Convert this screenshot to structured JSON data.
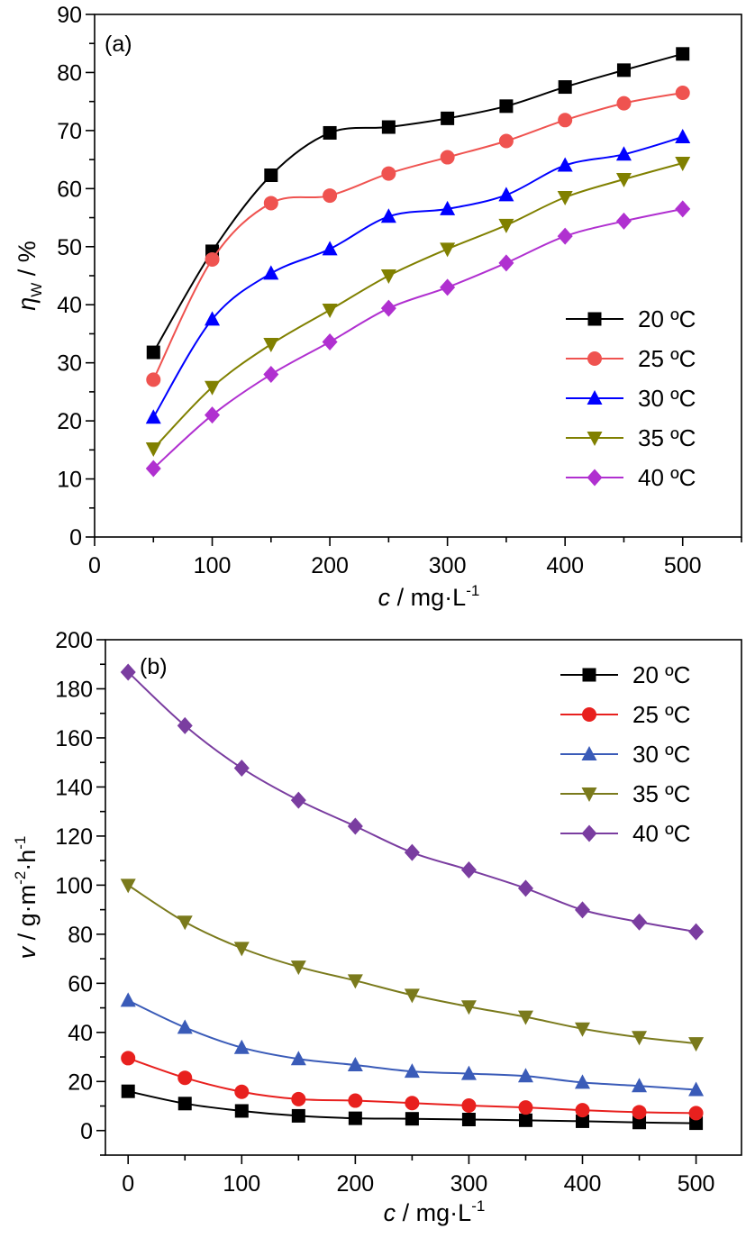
{
  "chart_data": [
    {
      "type": "line",
      "panel_label": "(a)",
      "xlabel": {
        "var": "c",
        "rest": " / mg·L",
        "sup": "-1"
      },
      "ylabel": {
        "var": "η",
        "sub": "W",
        "rest": " / %"
      },
      "xlim": [
        0,
        550
      ],
      "ylim": [
        0,
        90
      ],
      "xticks": [
        0,
        100,
        200,
        300,
        400,
        500
      ],
      "yticks": [
        0,
        10,
        20,
        30,
        40,
        50,
        60,
        70,
        80,
        90
      ],
      "legend_position": "lower-right",
      "x": [
        50,
        100,
        150,
        200,
        250,
        300,
        350,
        400,
        450,
        500
      ],
      "series": [
        {
          "name": "20 ºC",
          "color": "#000000",
          "marker": "square",
          "values": [
            31.8,
            49.2,
            62.3,
            69.6,
            70.6,
            72.1,
            74.2,
            77.5,
            80.4,
            83.2
          ]
        },
        {
          "name": "25 ºC",
          "color": "#ef5350",
          "marker": "circle",
          "values": [
            27.1,
            47.8,
            57.5,
            58.8,
            62.6,
            65.4,
            68.2,
            71.8,
            74.7,
            76.5
          ]
        },
        {
          "name": "30 ºC",
          "color": "#0000ff",
          "marker": "triangle-up",
          "values": [
            20.6,
            37.5,
            45.4,
            49.6,
            55.2,
            56.5,
            58.9,
            64.0,
            65.9,
            68.9
          ]
        },
        {
          "name": "35 ºC",
          "color": "#808000",
          "marker": "triangle-down",
          "values": [
            15.2,
            25.8,
            33.2,
            39.1,
            45.0,
            49.6,
            53.7,
            58.5,
            61.6,
            64.4
          ]
        },
        {
          "name": "40 ºC",
          "color": "#b030d0",
          "marker": "diamond",
          "values": [
            11.8,
            21.0,
            28.0,
            33.6,
            39.4,
            43.0,
            47.2,
            51.8,
            54.4,
            56.5
          ]
        }
      ]
    },
    {
      "type": "line",
      "panel_label": "(b)",
      "xlabel": {
        "var": "c",
        "rest": " / mg·L",
        "sup": "-1"
      },
      "ylabel": {
        "var": "v",
        "rest": " / g·m",
        "sup1": "-2",
        "mid": "·h",
        "sup2": "-1"
      },
      "xlim": [
        -20,
        540
      ],
      "ylim": [
        -10,
        200
      ],
      "xticks": [
        0,
        100,
        200,
        300,
        400,
        500
      ],
      "yticks": [
        0,
        20,
        40,
        60,
        80,
        100,
        120,
        140,
        160,
        180,
        200
      ],
      "legend_position": "upper-right",
      "x": [
        0,
        50,
        100,
        150,
        200,
        250,
        300,
        350,
        400,
        450,
        500
      ],
      "series": [
        {
          "name": "20 ºC",
          "color": "#000000",
          "marker": "square",
          "values": [
            16.0,
            11.0,
            8.0,
            6.0,
            5.0,
            4.8,
            4.5,
            4.2,
            3.8,
            3.3,
            3.0
          ]
        },
        {
          "name": "25 ºC",
          "color": "#e8201e",
          "marker": "circle",
          "values": [
            29.5,
            21.5,
            15.8,
            12.8,
            12.2,
            11.2,
            10.2,
            9.4,
            8.3,
            7.5,
            7.1
          ]
        },
        {
          "name": "30 ºC",
          "color": "#3a5bb8",
          "marker": "triangle-up",
          "values": [
            53.0,
            42.0,
            33.8,
            29.2,
            26.7,
            24.1,
            23.2,
            22.2,
            19.6,
            18.2,
            16.6
          ]
        },
        {
          "name": "35 ºC",
          "color": "#7a7a1c",
          "marker": "triangle-down",
          "values": [
            100.0,
            85.0,
            74.3,
            66.7,
            61.1,
            55.2,
            50.5,
            46.3,
            41.5,
            38.0,
            35.5
          ]
        },
        {
          "name": "40 ºC",
          "color": "#7a3da0",
          "marker": "diamond",
          "values": [
            186.8,
            165.0,
            147.7,
            134.6,
            124.0,
            113.3,
            106.2,
            98.7,
            89.9,
            85.0,
            81.0
          ]
        }
      ]
    }
  ]
}
